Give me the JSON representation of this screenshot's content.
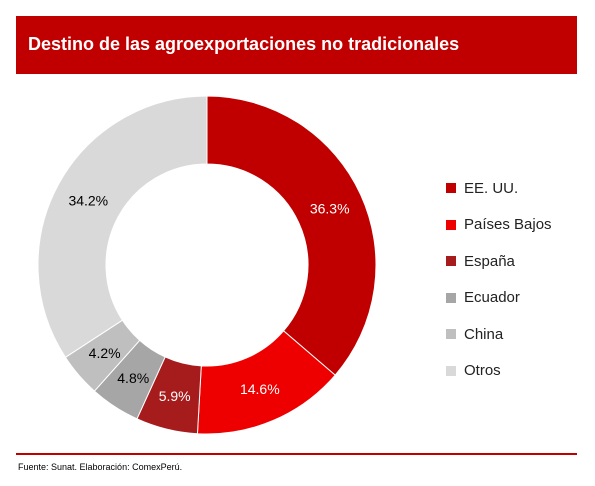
{
  "header": {
    "title": "Destino de las agroexportaciones no tradicionales"
  },
  "chart_data": {
    "type": "pie",
    "title": "Destino de las agroexportaciones no tradicionales",
    "categories": [
      "EE. UU.",
      "Países Bajos",
      "España",
      "Ecuador",
      "China",
      "Otros"
    ],
    "values": [
      36.3,
      14.6,
      5.9,
      4.8,
      4.2,
      34.2
    ],
    "labels": [
      "36.3%",
      "14.6%",
      "5.9%",
      "4.8%",
      "4.2%",
      "34.2%"
    ],
    "colors": [
      "#c00000",
      "#ee0000",
      "#a61c1c",
      "#a6a6a6",
      "#bfbfbf",
      "#d9d9d9"
    ],
    "label_colors": [
      "#ffffff",
      "#ffffff",
      "#ffffff",
      "#000000",
      "#000000",
      "#000000"
    ],
    "legend_position": "right",
    "donut": true
  },
  "footer": {
    "source": "Fuente: Sunat. Elaboración: ComexPerú."
  }
}
